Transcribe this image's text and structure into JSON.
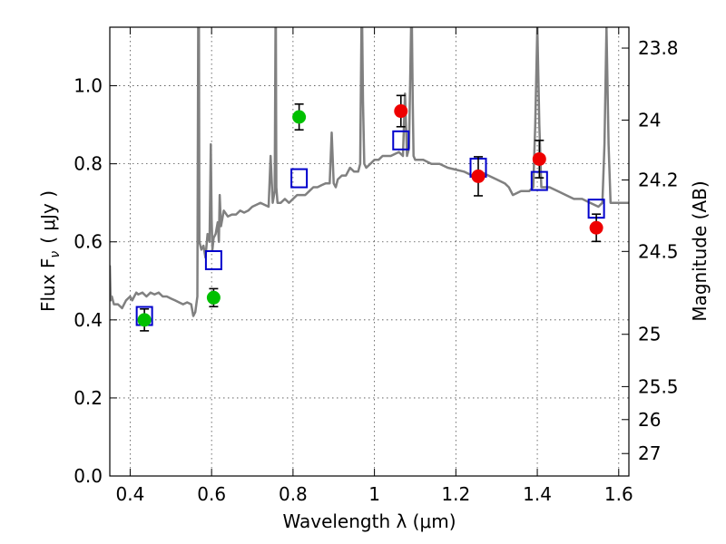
{
  "chart_data": {
    "type": "scatter",
    "xlabel": "Wavelength  λ (μm)",
    "ylabel": "Flux  F",
    "ylabel_sub": "ν",
    "ylabel_unit": "( μJy )",
    "y2label": "Magnitude (AB)",
    "xlim": [
      0.35,
      1.625
    ],
    "ylim": [
      0.0,
      1.15
    ],
    "grid": true,
    "x_ticks": [
      {
        "value": 0.4,
        "label": "0.4"
      },
      {
        "value": 0.6,
        "label": "0.6"
      },
      {
        "value": 0.8,
        "label": "0.8"
      },
      {
        "value": 1.0,
        "label": "1"
      },
      {
        "value": 1.2,
        "label": "1.2"
      },
      {
        "value": 1.4,
        "label": "1.4"
      },
      {
        "value": 1.6,
        "label": "1.6"
      }
    ],
    "y_ticks": [
      {
        "value": 0.0,
        "label": "0.0"
      },
      {
        "value": 0.2,
        "label": "0.2"
      },
      {
        "value": 0.4,
        "label": "0.4"
      },
      {
        "value": 0.6,
        "label": "0.6"
      },
      {
        "value": 0.8,
        "label": "0.8"
      },
      {
        "value": 1.0,
        "label": "1.0"
      }
    ],
    "y2_ticks": [
      {
        "value": 23.8,
        "label": "23.8"
      },
      {
        "value": 24.0,
        "label": "24"
      },
      {
        "value": 24.2,
        "label": "24.2"
      },
      {
        "value": 24.5,
        "label": "24.5"
      },
      {
        "value": 25.0,
        "label": "25"
      },
      {
        "value": 25.5,
        "label": "25.5"
      },
      {
        "value": 26.0,
        "label": "26"
      },
      {
        "value": 27.0,
        "label": "27"
      }
    ],
    "colors": {
      "model_line": "#808080",
      "observed_green": "#00c000",
      "observed_red": "#ee0000",
      "model_boxes": "#0000cc",
      "errorbar": "#000000"
    },
    "series": [
      {
        "kind": "line",
        "color": "#808080",
        "x": [
          0.35,
          0.352,
          0.355,
          0.36,
          0.37,
          0.38,
          0.39,
          0.4,
          0.405,
          0.41,
          0.415,
          0.42,
          0.43,
          0.44,
          0.45,
          0.46,
          0.47,
          0.48,
          0.49,
          0.5,
          0.51,
          0.52,
          0.53,
          0.54,
          0.55,
          0.555,
          0.56,
          0.565,
          0.567,
          0.568,
          0.569,
          0.57,
          0.575,
          0.58,
          0.585,
          0.59,
          0.595,
          0.598,
          0.6,
          0.602,
          0.605,
          0.61,
          0.615,
          0.618,
          0.62,
          0.623,
          0.63,
          0.64,
          0.65,
          0.66,
          0.67,
          0.68,
          0.69,
          0.7,
          0.72,
          0.74,
          0.745,
          0.75,
          0.755,
          0.757,
          0.758,
          0.759,
          0.762,
          0.77,
          0.78,
          0.79,
          0.8,
          0.81,
          0.82,
          0.83,
          0.84,
          0.85,
          0.86,
          0.87,
          0.88,
          0.89,
          0.895,
          0.9,
          0.905,
          0.91,
          0.92,
          0.93,
          0.94,
          0.95,
          0.96,
          0.965,
          0.968,
          0.97,
          0.972,
          0.975,
          0.98,
          0.99,
          1.0,
          1.01,
          1.02,
          1.04,
          1.06,
          1.07,
          1.075,
          1.08,
          1.085,
          1.09,
          1.092,
          1.094,
          1.096,
          1.1,
          1.12,
          1.14,
          1.16,
          1.18,
          1.2,
          1.22,
          1.24,
          1.26,
          1.28,
          1.3,
          1.32,
          1.33,
          1.34,
          1.36,
          1.38,
          1.39,
          1.395,
          1.4,
          1.405,
          1.41,
          1.43,
          1.45,
          1.47,
          1.49,
          1.51,
          1.53,
          1.55,
          1.56,
          1.565,
          1.57,
          1.575,
          1.58,
          1.6,
          1.625
        ],
        "y": [
          0.54,
          0.45,
          0.46,
          0.44,
          0.44,
          0.43,
          0.45,
          0.46,
          0.45,
          0.46,
          0.47,
          0.465,
          0.47,
          0.46,
          0.47,
          0.465,
          0.47,
          0.46,
          0.46,
          0.455,
          0.45,
          0.445,
          0.44,
          0.445,
          0.44,
          0.41,
          0.42,
          0.46,
          1.15,
          1.15,
          1.15,
          0.6,
          0.58,
          0.59,
          0.56,
          0.62,
          0.6,
          0.85,
          0.66,
          0.58,
          0.61,
          0.62,
          0.65,
          0.6,
          0.72,
          0.64,
          0.68,
          0.665,
          0.67,
          0.67,
          0.68,
          0.675,
          0.68,
          0.69,
          0.7,
          0.69,
          0.82,
          0.7,
          0.73,
          1.15,
          1.15,
          0.74,
          0.7,
          0.7,
          0.71,
          0.7,
          0.71,
          0.72,
          0.72,
          0.72,
          0.73,
          0.74,
          0.74,
          0.745,
          0.75,
          0.75,
          0.88,
          0.75,
          0.74,
          0.76,
          0.77,
          0.77,
          0.79,
          0.78,
          0.78,
          0.8,
          1.15,
          1.15,
          0.96,
          0.8,
          0.79,
          0.8,
          0.81,
          0.81,
          0.82,
          0.82,
          0.83,
          0.82,
          0.98,
          0.82,
          0.84,
          1.15,
          1.15,
          0.96,
          0.82,
          0.81,
          0.81,
          0.8,
          0.8,
          0.79,
          0.785,
          0.78,
          0.77,
          0.78,
          0.77,
          0.76,
          0.75,
          0.74,
          0.72,
          0.73,
          0.73,
          0.74,
          0.9,
          1.15,
          0.9,
          0.74,
          0.74,
          0.73,
          0.72,
          0.71,
          0.71,
          0.7,
          0.69,
          0.7,
          0.85,
          1.15,
          0.85,
          0.7,
          0.7,
          0.7
        ]
      },
      {
        "kind": "points",
        "color": "#00c000",
        "x": [
          0.435,
          0.605,
          0.815
        ],
        "y": [
          0.4,
          0.457,
          0.92
        ],
        "yerr": [
          0.028,
          0.023,
          0.033
        ]
      },
      {
        "kind": "points",
        "color": "#ee0000",
        "x": [
          1.065,
          1.255,
          1.405,
          1.545
        ],
        "y": [
          0.935,
          0.768,
          0.812,
          0.636
        ],
        "yerr": [
          0.04,
          0.05,
          0.048,
          0.035
        ]
      },
      {
        "kind": "boxes",
        "color": "#0000cc",
        "x": [
          0.435,
          0.605,
          0.815,
          1.065,
          1.255,
          1.405,
          1.545
        ],
        "y": [
          0.41,
          0.553,
          0.763,
          0.86,
          0.79,
          0.756,
          0.685
        ]
      }
    ]
  }
}
